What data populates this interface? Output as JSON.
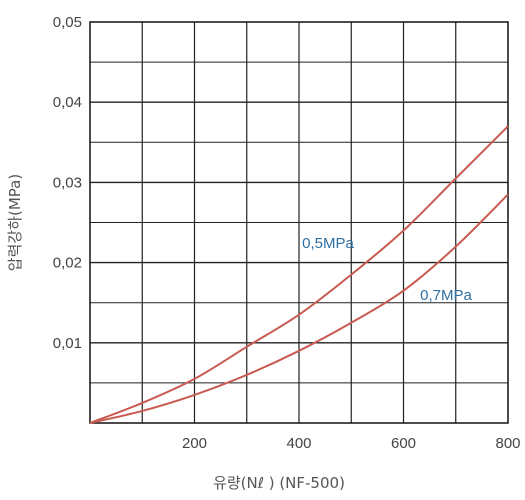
{
  "chart_data": {
    "type": "line",
    "xlabel": "유량(Nℓ ) (NF-500)",
    "ylabel": "압력강하(MPa)",
    "xlim": [
      0,
      800
    ],
    "ylim": [
      0,
      0.05
    ],
    "x_ticks": [
      200,
      400,
      600,
      800
    ],
    "x_tick_labels": [
      "200",
      "400",
      "600",
      "800"
    ],
    "y_ticks": [
      0.01,
      0.02,
      0.03,
      0.04,
      0.05
    ],
    "y_tick_labels": [
      "0,01",
      "0,02",
      "0,03",
      "0,04",
      "0,05"
    ],
    "grid": true,
    "series": [
      {
        "name": "0,5MPa",
        "color": "#c85a50",
        "label_color": "#2e6fa3",
        "x": [
          0,
          100,
          200,
          300,
          400,
          500,
          600,
          700,
          800
        ],
        "y": [
          0,
          0.0025,
          0.0055,
          0.0095,
          0.0135,
          0.0185,
          0.024,
          0.0305,
          0.037
        ]
      },
      {
        "name": "0,7MPa",
        "color": "#c85a50",
        "label_color": "#2e6fa3",
        "x": [
          0,
          100,
          200,
          300,
          400,
          500,
          600,
          700,
          800
        ],
        "y": [
          0,
          0.0015,
          0.0035,
          0.006,
          0.009,
          0.0125,
          0.0165,
          0.022,
          0.0285
        ]
      }
    ]
  }
}
